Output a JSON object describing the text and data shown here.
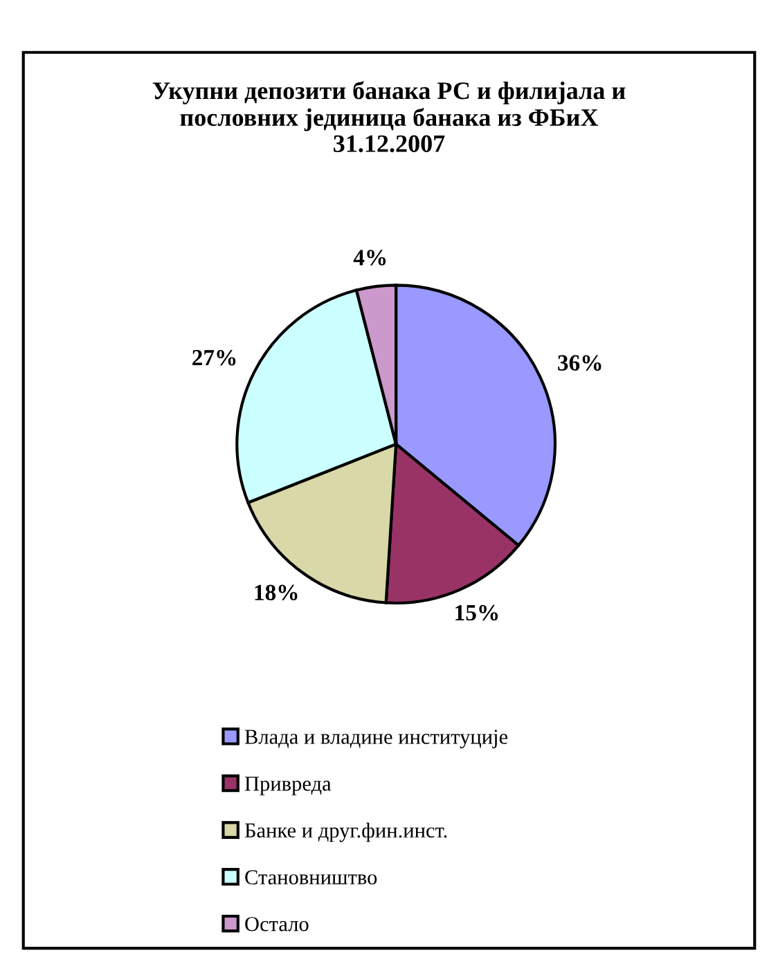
{
  "chart_data": {
    "type": "pie",
    "title": "Укупни депозити банака РС и филијала и\nпословних јединица банака из ФБиХ\n31.12.2007",
    "categories": [
      "Влада и владине институције",
      "Привреда",
      "Банке и друг.фин.инст.",
      "Становништво",
      "Остало"
    ],
    "values": [
      36,
      15,
      18,
      27,
      4
    ],
    "colors": [
      "#9999ff",
      "#993366",
      "#d8d8a8",
      "#ccffff",
      "#cc99cc"
    ],
    "value_labels": [
      "36%",
      "15%",
      "18%",
      "27%",
      "4%"
    ],
    "legend": "bottom"
  }
}
